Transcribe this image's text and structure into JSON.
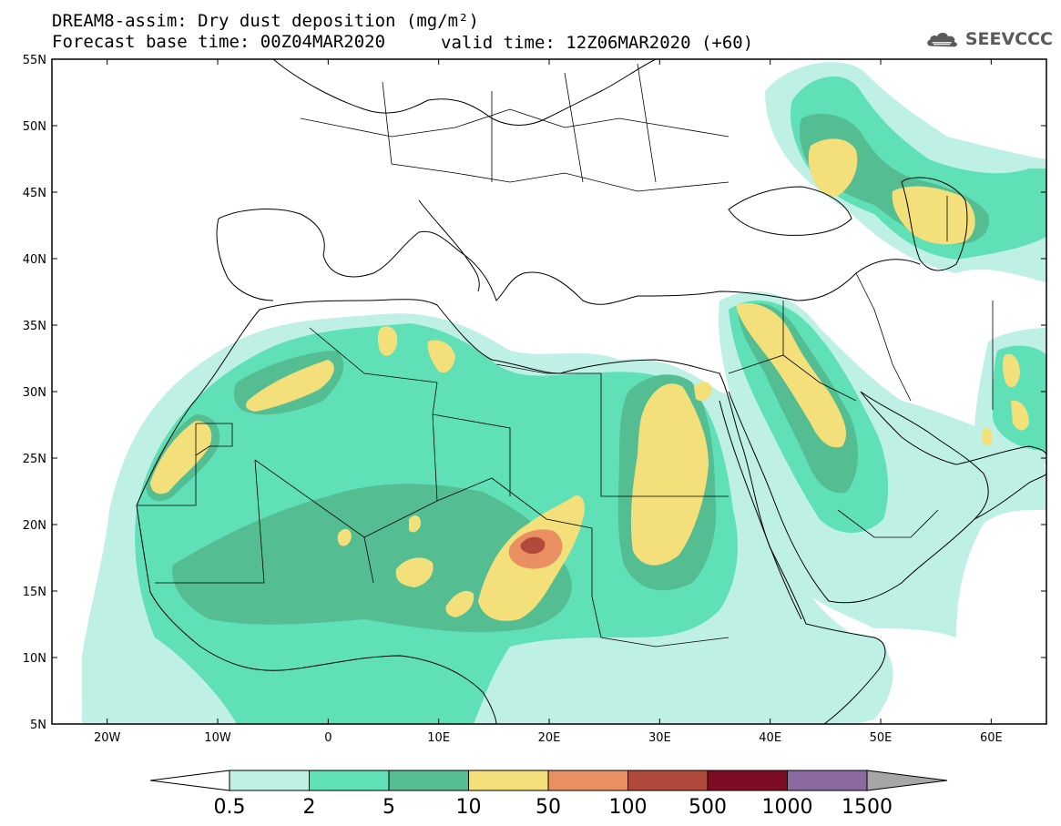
{
  "title": {
    "line1": "DREAM8-assim: Dry dust deposition (mg/m²)",
    "line2": "Forecast base time: 00Z04MAR2020",
    "valid": "valid time: 12Z06MAR2020 (+60)"
  },
  "logo": {
    "text": "SEEVCCC",
    "icon": "cloud-icon"
  },
  "axes": {
    "lat_labels": [
      "55N",
      "50N",
      "45N",
      "40N",
      "35N",
      "30N",
      "25N",
      "20N",
      "15N",
      "10N",
      "5N"
    ],
    "lon_labels": [
      "20W",
      "10W",
      "0",
      "10E",
      "20E",
      "30E",
      "40E",
      "50E",
      "60E"
    ],
    "lat_range": [
      5,
      55
    ],
    "lon_range": [
      -25,
      65
    ]
  },
  "legend": {
    "levels": [
      "0.5",
      "2",
      "5",
      "10",
      "50",
      "100",
      "500",
      "1000",
      "1500"
    ],
    "colors": [
      "#bff0e6",
      "#5fe0b6",
      "#55bd92",
      "#f3e07a",
      "#ea8f62",
      "#b24a3c",
      "#7f0c25",
      "#8a6aa0"
    ],
    "under_color": "#ffffff",
    "over_color": "#a6a6a6"
  },
  "palette": {
    "lightest": "#bff0e6",
    "light": "#5fe0b6",
    "mid": "#55bd92",
    "yellow": "#f3e07a",
    "orange": "#ea8f62",
    "red": "#b24a3c"
  }
}
